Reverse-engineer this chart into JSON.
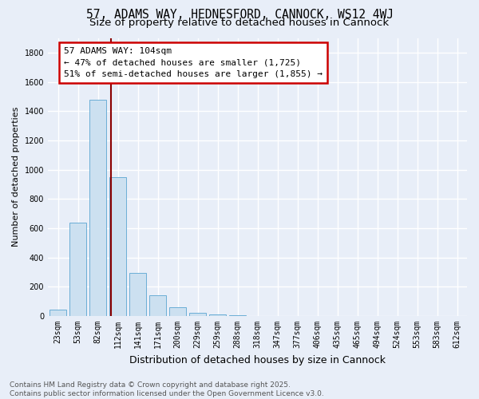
{
  "title": "57, ADAMS WAY, HEDNESFORD, CANNOCK, WS12 4WJ",
  "subtitle": "Size of property relative to detached houses in Cannock",
  "xlabel": "Distribution of detached houses by size in Cannock",
  "ylabel": "Number of detached properties",
  "categories": [
    "23sqm",
    "53sqm",
    "82sqm",
    "112sqm",
    "141sqm",
    "171sqm",
    "200sqm",
    "229sqm",
    "259sqm",
    "288sqm",
    "318sqm",
    "347sqm",
    "377sqm",
    "406sqm",
    "435sqm",
    "465sqm",
    "494sqm",
    "524sqm",
    "553sqm",
    "583sqm",
    "612sqm"
  ],
  "values": [
    42,
    640,
    1480,
    950,
    295,
    140,
    60,
    20,
    10,
    5,
    2,
    2,
    1,
    1,
    1,
    0,
    0,
    0,
    0,
    0,
    0
  ],
  "bar_color": "#cce0f0",
  "bar_edge_color": "#6baed6",
  "vline_color": "#8b0000",
  "annotation_text": "57 ADAMS WAY: 104sqm\n← 47% of detached houses are smaller (1,725)\n51% of semi-detached houses are larger (1,855) →",
  "annotation_box_color": "white",
  "annotation_box_edge": "#cc0000",
  "ylim": [
    0,
    1900
  ],
  "yticks": [
    0,
    200,
    400,
    600,
    800,
    1000,
    1200,
    1400,
    1600,
    1800
  ],
  "background_color": "#e8eef8",
  "grid_color": "white",
  "footnote": "Contains HM Land Registry data © Crown copyright and database right 2025.\nContains public sector information licensed under the Open Government Licence v3.0.",
  "title_fontsize": 10.5,
  "subtitle_fontsize": 9.5,
  "xlabel_fontsize": 9,
  "ylabel_fontsize": 8,
  "tick_fontsize": 7,
  "annotation_fontsize": 8,
  "footnote_fontsize": 6.5
}
